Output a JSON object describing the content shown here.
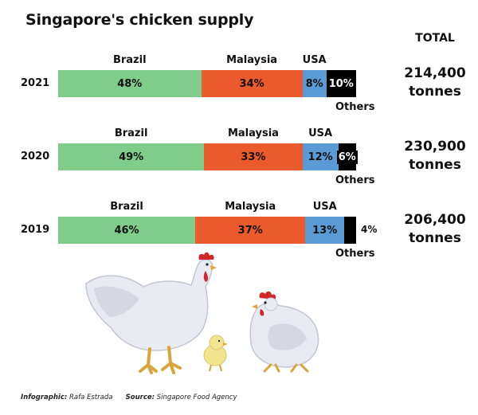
{
  "title": "Singapore's chicken supply",
  "total_header": "TOTAL",
  "colors": {
    "brazil": "#7fcc8b",
    "malaysia": "#ea5a2c",
    "usa": "#5b9bd5",
    "others": "#000000"
  },
  "chart_data": {
    "type": "bar",
    "orientation": "horizontal-stacked-100",
    "title": "Singapore's chicken supply",
    "categories": [
      "2021",
      "2020",
      "2019"
    ],
    "series": [
      {
        "name": "Brazil",
        "values": [
          48,
          49,
          46
        ],
        "labels": [
          "48%",
          "49%",
          "46%"
        ]
      },
      {
        "name": "Malaysia",
        "values": [
          34,
          33,
          37
        ],
        "labels": [
          "34%",
          "33%",
          "37%"
        ]
      },
      {
        "name": "USA",
        "values": [
          8,
          12,
          13
        ],
        "labels": [
          "8%",
          "12%",
          "13%"
        ]
      },
      {
        "name": "Others",
        "values": [
          10,
          6,
          4
        ],
        "labels": [
          "10%",
          "6%",
          "4%"
        ]
      }
    ],
    "totals": [
      {
        "value": "214,400",
        "unit": "tonnes"
      },
      {
        "value": "230,900",
        "unit": "tonnes"
      },
      {
        "value": "206,400",
        "unit": "tonnes"
      }
    ]
  },
  "footer": {
    "infographic_label": "Infographic:",
    "infographic_value": "Rafa Estrada",
    "source_label": "Source:",
    "source_value": "Singapore Food Agency"
  }
}
